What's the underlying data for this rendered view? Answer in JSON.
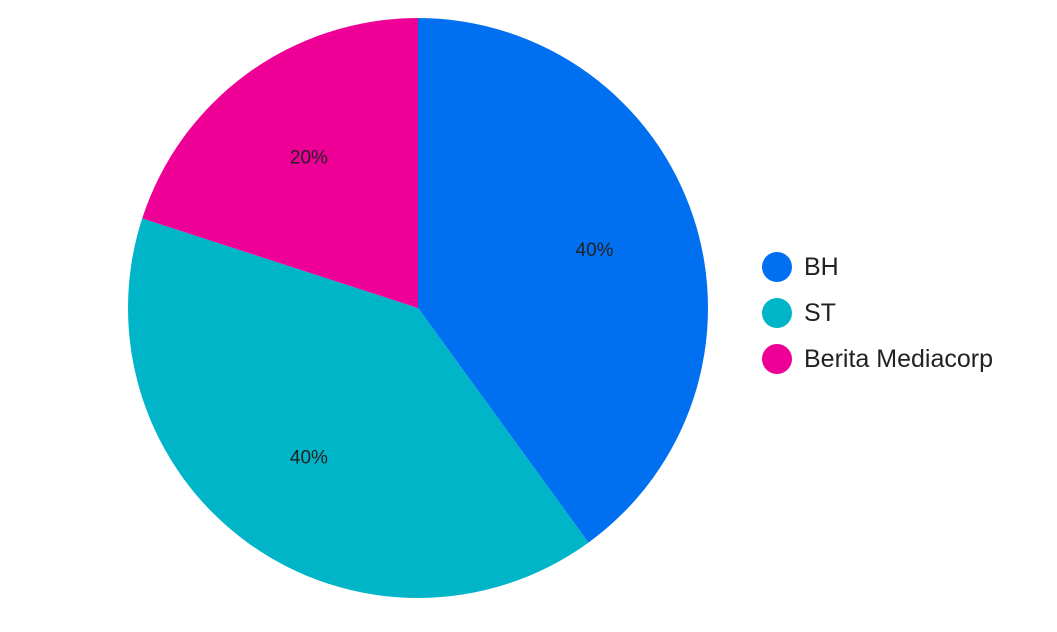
{
  "chart_data": {
    "type": "pie",
    "title": "",
    "legend_position": "right",
    "slices": [
      {
        "label": "BH",
        "value": 40,
        "value_label": "40%",
        "color": "#0070F0"
      },
      {
        "label": "ST",
        "value": 40,
        "value_label": "40%",
        "color": "#00B5C8"
      },
      {
        "label": "Berita Mediacorp",
        "value": 20,
        "value_label": "20%",
        "color": "#EE0097"
      }
    ]
  }
}
